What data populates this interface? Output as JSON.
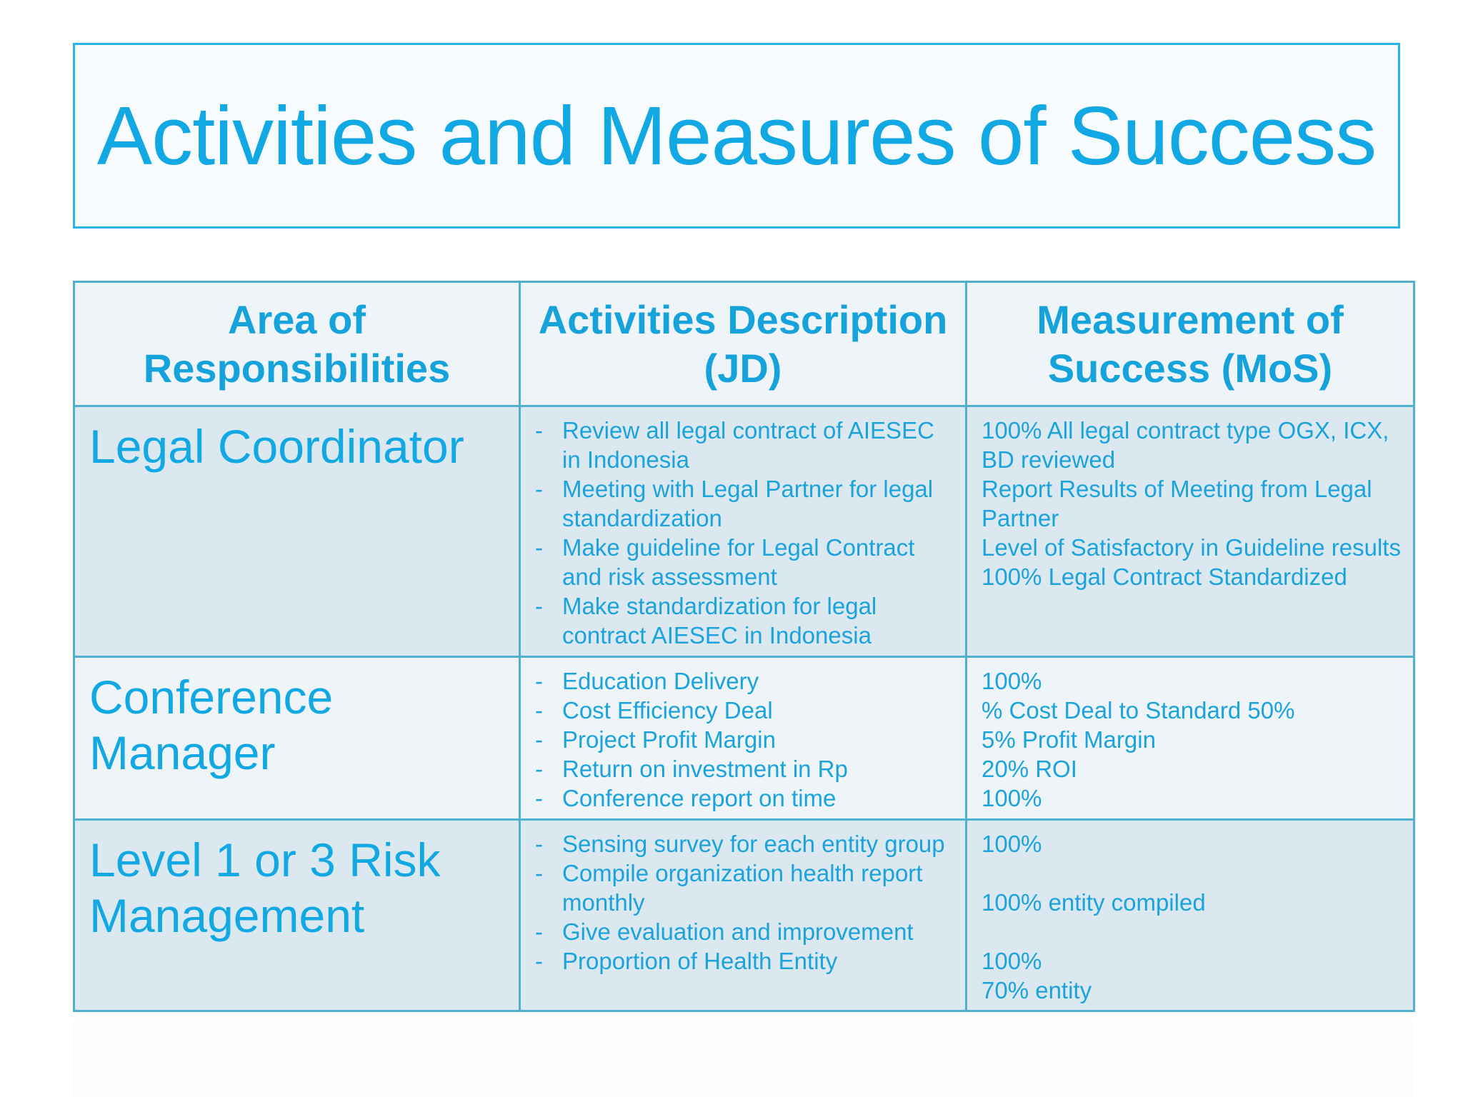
{
  "title": "Activities and Measures of Success",
  "headers": {
    "area": "Area of Responsibilities",
    "activities": "Activities Description (JD)",
    "measurement": "Measurement of Success (MoS)"
  },
  "rows": [
    {
      "area": "Legal Coordinator",
      "activities": [
        "Review all legal contract of AIESEC in Indonesia",
        "Meeting with Legal Partner for legal standardization",
        "Make guideline for Legal Contract and risk assessment",
        "Make standardization for legal contract AIESEC in Indonesia"
      ],
      "measures": [
        "100% All legal contract type OGX, ICX, BD reviewed",
        "Report Results of Meeting from Legal Partner",
        "Level of Satisfactory in Guideline results",
        "100% Legal Contract Standardized"
      ]
    },
    {
      "area": "Conference Manager",
      "activities": [
        "Education Delivery",
        "Cost Efficiency Deal",
        "Project Profit Margin",
        "Return on investment in Rp",
        "Conference report on time"
      ],
      "measures": [
        "100%",
        "% Cost Deal to Standard 50%",
        "5% Profit Margin",
        "20% ROI",
        "100%"
      ]
    },
    {
      "area": "Level 1 or 3 Risk Management",
      "activities": [
        "Sensing survey for each entity group",
        "Compile organization health report monthly",
        "Give evaluation and improvement",
        "Proportion of Health Entity"
      ],
      "measures": [
        "100%",
        "",
        "100% entity compiled",
        "",
        "100%",
        "70% entity"
      ]
    }
  ]
}
